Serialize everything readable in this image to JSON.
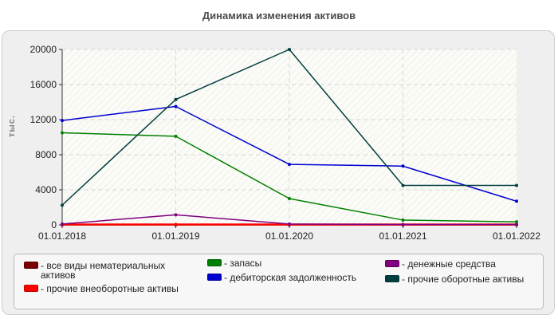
{
  "chart_data": {
    "type": "line",
    "title": "Динамика изменения активов",
    "xlabel": "",
    "ylabel": "тыс.",
    "categories": [
      "01.01.2018",
      "01.01.2019",
      "01.01.2020",
      "01.01.2021",
      "01.01.2022"
    ],
    "ylim": [
      0,
      20000
    ],
    "yticks": [
      0,
      4000,
      8000,
      12000,
      16000,
      20000
    ],
    "grid": true,
    "legend_position": "bottom",
    "series": [
      {
        "name": "- все виды нематериальных активов",
        "color": "#7b0000",
        "values": [
          0,
          0,
          0,
          0,
          0
        ]
      },
      {
        "name": "- прочие внеоборотные активы",
        "color": "#ff0000",
        "values": [
          50,
          50,
          50,
          50,
          50
        ]
      },
      {
        "name": "- запасы",
        "color": "#008000",
        "values": [
          10500,
          10100,
          3000,
          550,
          350
        ]
      },
      {
        "name": "- дебиторская задолженность",
        "color": "#0000d0",
        "values": [
          11900,
          13500,
          6900,
          6700,
          2700
        ]
      },
      {
        "name": "- денежные средства",
        "color": "#800080",
        "values": [
          100,
          1150,
          100,
          50,
          50
        ]
      },
      {
        "name": "- прочие оборотные активы",
        "color": "#003f3f",
        "values": [
          2250,
          14300,
          20000,
          4500,
          4500
        ]
      }
    ]
  }
}
